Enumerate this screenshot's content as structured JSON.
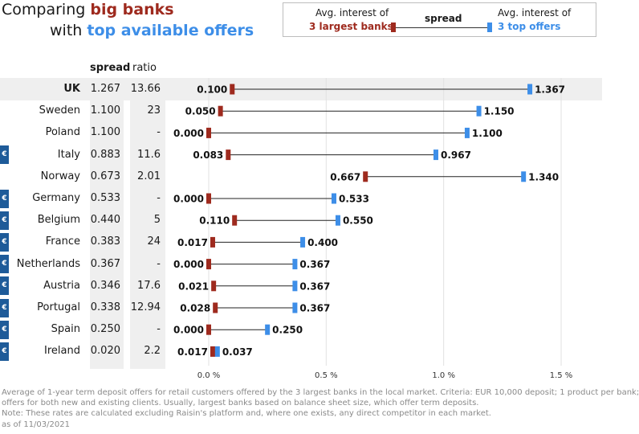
{
  "title": {
    "line1_prefix": "Comparing ",
    "line1_highlight": "big banks",
    "line2_prefix": "with ",
    "line2_highlight": "top available offers"
  },
  "legend": {
    "left_line1": "Avg. interest of",
    "left_line2": "3 largest banks",
    "middle": "spread",
    "right_line1": "Avg. interest of",
    "right_line2": "3 top offers"
  },
  "columns": {
    "spread": "spread",
    "ratio": "ratio"
  },
  "colors": {
    "big_banks": "#9e2a1e",
    "top_offers": "#3d8ee8",
    "euro_badge": "#1e5b99"
  },
  "euro_symbol": "€",
  "chart_data": {
    "type": "dumbbell",
    "x_axis": {
      "min": 0,
      "max": 1.5,
      "ticks": [
        0,
        0.5,
        1.0,
        1.5
      ],
      "tick_labels": [
        "0.0 %",
        "0.5 %",
        "1.0 %",
        "1.5 %"
      ],
      "grid": true
    },
    "series_names": [
      "Avg. interest of 3 largest banks",
      "Avg. interest of 3 top offers"
    ],
    "rows": [
      {
        "country": "UK",
        "spread": "1.267",
        "ratio": "13.66",
        "big": 0.1,
        "big_label": "0.100",
        "top": 1.367,
        "top_label": "1.367",
        "euro": false,
        "highlight": true
      },
      {
        "country": "Sweden",
        "spread": "1.100",
        "ratio": "23",
        "big": 0.05,
        "big_label": "0.050",
        "top": 1.15,
        "top_label": "1.150",
        "euro": false,
        "highlight": false
      },
      {
        "country": "Poland",
        "spread": "1.100",
        "ratio": "-",
        "big": 0.0,
        "big_label": "0.000",
        "top": 1.1,
        "top_label": "1.100",
        "euro": false,
        "highlight": false
      },
      {
        "country": "Italy",
        "spread": "0.883",
        "ratio": "11.6",
        "big": 0.083,
        "big_label": "0.083",
        "top": 0.967,
        "top_label": "0.967",
        "euro": true,
        "highlight": false
      },
      {
        "country": "Norway",
        "spread": "0.673",
        "ratio": "2.01",
        "big": 0.667,
        "big_label": "0.667",
        "top": 1.34,
        "top_label": "1.340",
        "euro": false,
        "highlight": false
      },
      {
        "country": "Germany",
        "spread": "0.533",
        "ratio": "-",
        "big": 0.0,
        "big_label": "0.000",
        "top": 0.533,
        "top_label": "0.533",
        "euro": true,
        "highlight": false
      },
      {
        "country": "Belgium",
        "spread": "0.440",
        "ratio": "5",
        "big": 0.11,
        "big_label": "0.110",
        "top": 0.55,
        "top_label": "0.550",
        "euro": true,
        "highlight": false
      },
      {
        "country": "France",
        "spread": "0.383",
        "ratio": "24",
        "big": 0.017,
        "big_label": "0.017",
        "top": 0.4,
        "top_label": "0.400",
        "euro": true,
        "highlight": false
      },
      {
        "country": "Netherlands",
        "spread": "0.367",
        "ratio": "-",
        "big": 0.0,
        "big_label": "0.000",
        "top": 0.367,
        "top_label": "0.367",
        "euro": true,
        "highlight": false
      },
      {
        "country": "Austria",
        "spread": "0.346",
        "ratio": "17.6",
        "big": 0.021,
        "big_label": "0.021",
        "top": 0.367,
        "top_label": "0.367",
        "euro": true,
        "highlight": false
      },
      {
        "country": "Portugal",
        "spread": "0.338",
        "ratio": "12.94",
        "big": 0.028,
        "big_label": "0.028",
        "top": 0.367,
        "top_label": "0.367",
        "euro": true,
        "highlight": false
      },
      {
        "country": "Spain",
        "spread": "0.250",
        "ratio": "-",
        "big": 0.0,
        "big_label": "0.000",
        "top": 0.25,
        "top_label": "0.250",
        "euro": true,
        "highlight": false
      },
      {
        "country": "Ireland",
        "spread": "0.020",
        "ratio": "2.2",
        "big": 0.017,
        "big_label": "0.017",
        "top": 0.037,
        "top_label": "0.037",
        "euro": true,
        "highlight": false
      }
    ]
  },
  "footnote": {
    "line1": "Average of 1-year term deposit offers for retail customers offered by the 3 largest banks in the local market. Criteria: EUR 10,000 deposit; 1 product per bank;",
    "line2": "offers for both new and existing clients. Usually, largest banks based on balance sheet size, which offer term deposits.",
    "line3": "Note: These rates are calculated excluding Raisin's platform and, where one exists, any direct competitor in each market.",
    "line4": "as of 11/03/2021"
  }
}
